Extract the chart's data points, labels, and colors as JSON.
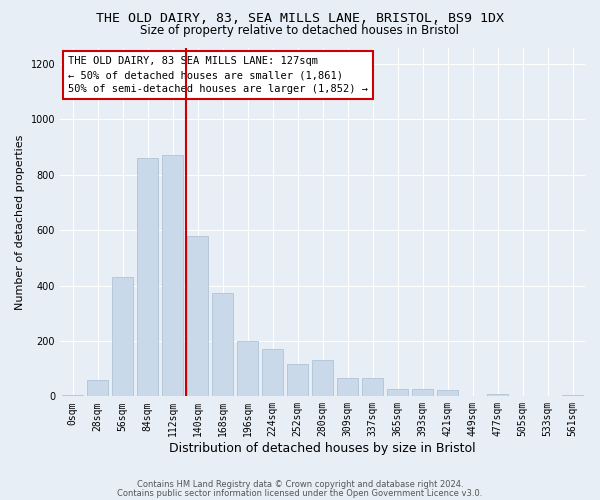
{
  "title1": "THE OLD DAIRY, 83, SEA MILLS LANE, BRISTOL, BS9 1DX",
  "title2": "Size of property relative to detached houses in Bristol",
  "xlabel": "Distribution of detached houses by size in Bristol",
  "ylabel": "Number of detached properties",
  "bar_color": "#c9d9ea",
  "bar_edge_color": "#b0c4d8",
  "vline_color": "#cc0000",
  "categories": [
    "0sqm",
    "28sqm",
    "56sqm",
    "84sqm",
    "112sqm",
    "140sqm",
    "168sqm",
    "196sqm",
    "224sqm",
    "252sqm",
    "280sqm",
    "309sqm",
    "337sqm",
    "365sqm",
    "393sqm",
    "421sqm",
    "449sqm",
    "477sqm",
    "505sqm",
    "533sqm",
    "561sqm"
  ],
  "values": [
    5,
    60,
    430,
    860,
    870,
    580,
    375,
    200,
    170,
    115,
    130,
    68,
    65,
    28,
    28,
    22,
    0,
    8,
    0,
    0,
    5
  ],
  "ylim": [
    0,
    1260
  ],
  "yticks": [
    0,
    200,
    400,
    600,
    800,
    1000,
    1200
  ],
  "annotation_text": "THE OLD DAIRY, 83 SEA MILLS LANE: 127sqm\n← 50% of detached houses are smaller (1,861)\n50% of semi-detached houses are larger (1,852) →",
  "footer1": "Contains HM Land Registry data © Crown copyright and database right 2024.",
  "footer2": "Contains public sector information licensed under the Open Government Licence v3.0.",
  "bg_color": "#e8eef5",
  "plot_bg_color": "#e8eef5",
  "grid_color": "#ffffff",
  "title_fontsize": 9.5,
  "subtitle_fontsize": 8.5,
  "tick_fontsize": 7,
  "ylabel_fontsize": 8,
  "xlabel_fontsize": 9
}
